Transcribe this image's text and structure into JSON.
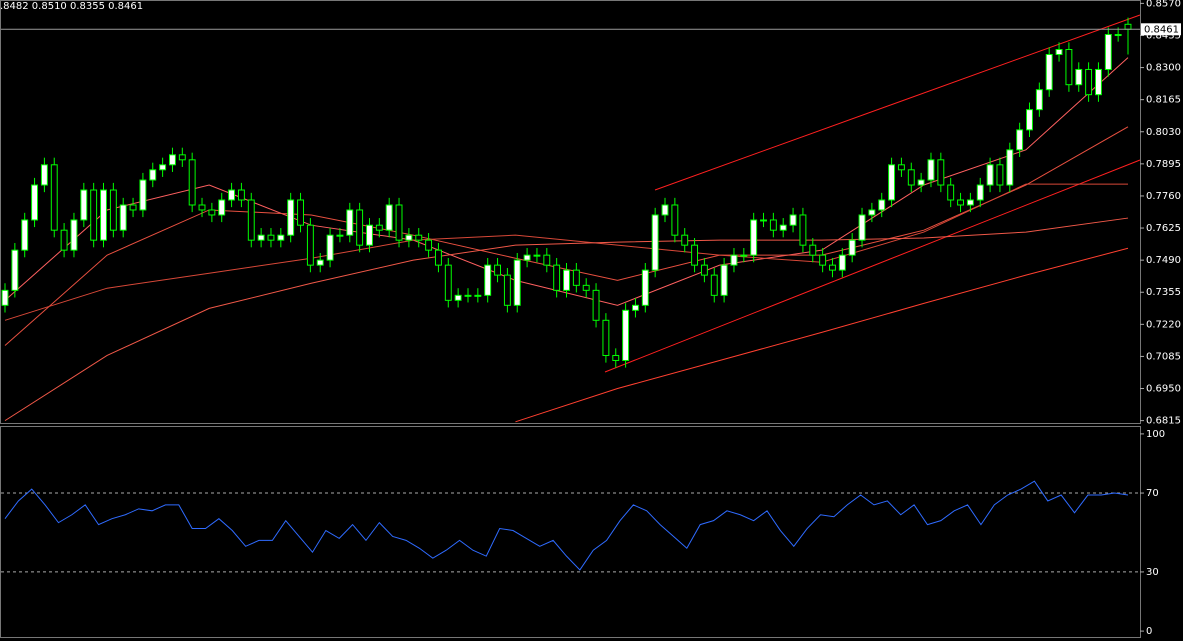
{
  "chart_data": [
    {
      "type": "candlestick",
      "header": ".8482 0.8510 0.8355 0.8461",
      "up_color": "#ffffff",
      "down_color": "#000000",
      "line_color": "#00ff00",
      "open": [
        0.73,
        0.7363,
        0.7532,
        0.7659,
        0.7806,
        0.7891,
        0.7616,
        0.7532,
        0.7659,
        0.7785,
        0.7574,
        0.7785,
        0.7616,
        0.7722,
        0.7701,
        0.7827,
        0.787,
        0.7891,
        0.7933,
        0.7912,
        0.7722,
        0.7701,
        0.768,
        0.7743,
        0.7785,
        0.7743,
        0.7574,
        0.7595,
        0.7574,
        0.7595,
        0.7743,
        0.7637,
        0.7469,
        0.749,
        0.7595,
        0.7595,
        0.7701,
        0.7553,
        0.7637,
        0.7616,
        0.7722,
        0.7574,
        0.7595,
        0.7574,
        0.7532,
        0.7469,
        0.7321,
        0.7342,
        0.7342,
        0.7342,
        0.7469,
        0.7427,
        0.73,
        0.749,
        0.7511,
        0.7511,
        0.7469,
        0.7363,
        0.7448,
        0.7384,
        0.7363,
        0.7237,
        0.7089,
        0.7068,
        0.7279,
        0.73,
        0.7448,
        0.768,
        0.7722,
        0.7595,
        0.7553,
        0.7469,
        0.7427,
        0.7342,
        0.7469,
        0.7511,
        0.7511,
        0.7659,
        0.7659,
        0.7616,
        0.7637,
        0.768,
        0.7553,
        0.7511,
        0.7469,
        0.7448,
        0.7511,
        0.7574,
        0.768,
        0.7701,
        0.7743,
        0.7891,
        0.787,
        0.7806,
        0.7827,
        0.7912,
        0.7806,
        0.7743,
        0.7722,
        0.7743,
        0.7806,
        0.7891,
        0.7806,
        0.7954,
        0.8038,
        0.8123,
        0.8207,
        0.8355,
        0.8376,
        0.8228,
        0.8292,
        0.8186,
        0.8292,
        0.8439,
        0.8482
      ],
      "high": [
        0.7393,
        0.7562,
        0.7689,
        0.7836,
        0.7921,
        0.7921,
        0.7646,
        0.7689,
        0.7815,
        0.7815,
        0.7815,
        0.7815,
        0.7752,
        0.7752,
        0.7857,
        0.79,
        0.7921,
        0.7963,
        0.7963,
        0.7942,
        0.7752,
        0.7731,
        0.7773,
        0.7815,
        0.7815,
        0.7773,
        0.7625,
        0.7625,
        0.7625,
        0.7773,
        0.7773,
        0.7667,
        0.752,
        0.7625,
        0.7625,
        0.7731,
        0.7731,
        0.7667,
        0.7667,
        0.7752,
        0.7752,
        0.7625,
        0.7625,
        0.7604,
        0.7562,
        0.7499,
        0.7372,
        0.7372,
        0.7372,
        0.7499,
        0.7499,
        0.7457,
        0.752,
        0.7541,
        0.7541,
        0.7541,
        0.7499,
        0.7478,
        0.7478,
        0.7414,
        0.7393,
        0.7267,
        0.7119,
        0.7309,
        0.733,
        0.7478,
        0.771,
        0.7752,
        0.7752,
        0.7625,
        0.7583,
        0.7499,
        0.7457,
        0.7499,
        0.7541,
        0.7541,
        0.7689,
        0.7689,
        0.7689,
        0.7667,
        0.771,
        0.771,
        0.7583,
        0.7541,
        0.7499,
        0.7541,
        0.7604,
        0.771,
        0.7731,
        0.7773,
        0.7921,
        0.7921,
        0.79,
        0.7857,
        0.7942,
        0.7942,
        0.7836,
        0.7773,
        0.7773,
        0.7836,
        0.7921,
        0.7921,
        0.7984,
        0.8068,
        0.8153,
        0.8237,
        0.8385,
        0.8406,
        0.8406,
        0.8322,
        0.8322,
        0.8322,
        0.8469,
        0.8469,
        0.851
      ],
      "low": [
        0.727,
        0.7333,
        0.7502,
        0.7629,
        0.7776,
        0.7586,
        0.7502,
        0.7502,
        0.7629,
        0.7544,
        0.7544,
        0.7586,
        0.7586,
        0.7671,
        0.7671,
        0.7797,
        0.784,
        0.7861,
        0.7882,
        0.7692,
        0.7671,
        0.765,
        0.765,
        0.7713,
        0.7713,
        0.7544,
        0.7544,
        0.7544,
        0.7544,
        0.7565,
        0.7607,
        0.7439,
        0.7439,
        0.746,
        0.7565,
        0.7565,
        0.7523,
        0.7523,
        0.7586,
        0.7586,
        0.7544,
        0.7544,
        0.7544,
        0.7502,
        0.7439,
        0.7291,
        0.7291,
        0.7312,
        0.7312,
        0.7312,
        0.7397,
        0.727,
        0.727,
        0.746,
        0.7481,
        0.7439,
        0.7333,
        0.7333,
        0.7354,
        0.7333,
        0.7207,
        0.7059,
        0.7038,
        0.7038,
        0.7249,
        0.727,
        0.7418,
        0.765,
        0.7565,
        0.7523,
        0.7439,
        0.7397,
        0.7312,
        0.7312,
        0.7439,
        0.7481,
        0.7481,
        0.7629,
        0.7586,
        0.7586,
        0.7607,
        0.7523,
        0.7481,
        0.7439,
        0.7418,
        0.7418,
        0.7481,
        0.7544,
        0.765,
        0.7671,
        0.7713,
        0.784,
        0.7776,
        0.7776,
        0.7797,
        0.7776,
        0.7713,
        0.7692,
        0.7692,
        0.7713,
        0.7776,
        0.7776,
        0.7776,
        0.7924,
        0.8008,
        0.8093,
        0.8177,
        0.8325,
        0.8198,
        0.8198,
        0.8156,
        0.8156,
        0.8262,
        0.8409,
        0.8355
      ],
      "close": [
        0.7363,
        0.7532,
        0.7659,
        0.7806,
        0.7891,
        0.7616,
        0.7532,
        0.7659,
        0.7785,
        0.7574,
        0.7785,
        0.7616,
        0.7722,
        0.7701,
        0.7827,
        0.787,
        0.7891,
        0.7933,
        0.7912,
        0.7722,
        0.7701,
        0.768,
        0.7743,
        0.7785,
        0.7743,
        0.7574,
        0.7595,
        0.7574,
        0.7595,
        0.7743,
        0.7637,
        0.7469,
        0.749,
        0.7595,
        0.7595,
        0.7701,
        0.7553,
        0.7637,
        0.7616,
        0.7722,
        0.7574,
        0.7595,
        0.7574,
        0.7532,
        0.7469,
        0.7321,
        0.7342,
        0.7342,
        0.7342,
        0.7469,
        0.7427,
        0.73,
        0.749,
        0.7511,
        0.7511,
        0.7469,
        0.7363,
        0.7448,
        0.7384,
        0.7363,
        0.7237,
        0.7089,
        0.7068,
        0.7279,
        0.73,
        0.7448,
        0.768,
        0.7722,
        0.7595,
        0.7553,
        0.7469,
        0.7427,
        0.7342,
        0.7469,
        0.7511,
        0.7511,
        0.7659,
        0.7659,
        0.7616,
        0.7637,
        0.768,
        0.7553,
        0.7511,
        0.7469,
        0.7448,
        0.7511,
        0.7574,
        0.768,
        0.7701,
        0.7743,
        0.7891,
        0.787,
        0.7806,
        0.7827,
        0.7912,
        0.7806,
        0.7743,
        0.7722,
        0.7743,
        0.7806,
        0.7891,
        0.7806,
        0.7954,
        0.8038,
        0.8123,
        0.8207,
        0.8355,
        0.8376,
        0.8228,
        0.8292,
        0.8186,
        0.8292,
        0.8439,
        0.8439,
        0.8461
      ],
      "overlays": [
        {
          "color": "#ff6060",
          "values": [
            0.7321,
            0.7701,
            0.7806,
            0.7637,
            0.7574,
            0.7405,
            0.73,
            0.7469,
            0.7532,
            0.7806,
            0.7954,
            0.8342
          ]
        },
        {
          "color": "#e85040",
          "values": [
            0.7131,
            0.7511,
            0.7701,
            0.768,
            0.7595,
            0.7498,
            0.7405,
            0.7511,
            0.7511,
            0.7616,
            0.7806,
            0.8051
          ]
        },
        {
          "color": "#d84838",
          "values": [
            0.7237,
            0.7372,
            0.7435,
            0.7498,
            0.7574,
            0.7595,
            0.7553,
            0.7511,
            0.7481,
            0.7608,
            0.781,
            0.781
          ]
        },
        {
          "color": "#f05848",
          "values": [
            0.6815,
            0.7089,
            0.7287,
            0.7393,
            0.749,
            0.7553,
            0.7566,
            0.7574,
            0.7574,
            0.7583,
            0.7608,
            0.7667
          ]
        },
        {
          "color": "#ff4030",
          "values": [
            null,
            null,
            null,
            null,
            null,
            0.681,
            0.695,
            0.7068,
            0.7186,
            0.7308,
            0.7427,
            0.754
          ]
        }
      ],
      "last_price": 0.8461,
      "ylim": [
        0.6805,
        0.858
      ],
      "yticks": [
        {
          "value": 0.857,
          "label": "0.8570"
        },
        {
          "value": 0.8435,
          "label": "0.8435"
        },
        {
          "value": 0.83,
          "label": "0.8300"
        },
        {
          "value": 0.8165,
          "label": "0.8165"
        },
        {
          "value": 0.803,
          "label": "0.8030"
        },
        {
          "value": 0.7895,
          "label": "0.7895"
        },
        {
          "value": 0.776,
          "label": "0.7760"
        },
        {
          "value": 0.7625,
          "label": "0.7625"
        },
        {
          "value": 0.749,
          "label": "0.7490"
        },
        {
          "value": 0.7355,
          "label": "0.7355"
        },
        {
          "value": 0.722,
          "label": "0.7220"
        },
        {
          "value": 0.7085,
          "label": "0.7085"
        },
        {
          "value": 0.695,
          "label": "0.6950"
        },
        {
          "value": 0.6815,
          "label": "0.6815"
        }
      ]
    },
    {
      "type": "line",
      "color": "#2f6bff",
      "values": [
        57,
        66,
        72,
        64,
        55,
        59,
        64,
        54,
        57,
        59,
        62,
        61,
        64,
        64,
        52,
        52,
        57,
        51,
        43,
        46,
        46,
        56,
        48,
        40,
        51,
        47,
        54,
        46,
        55,
        48,
        46,
        42,
        37,
        41,
        46,
        41,
        38,
        52,
        51,
        47,
        43,
        46,
        38,
        31,
        41,
        46,
        56,
        64,
        61,
        54,
        48,
        42,
        54,
        56,
        61,
        59,
        56,
        61,
        51,
        43,
        52,
        59,
        58,
        64,
        69,
        64,
        66,
        59,
        64,
        54,
        56,
        61,
        64,
        54,
        64,
        69,
        72,
        76,
        66,
        69,
        60,
        69,
        69,
        70,
        69
      ],
      "ylim": [
        -3,
        103.5
      ],
      "yticks": [
        100,
        70,
        30,
        0
      ],
      "levels": [
        70,
        30
      ]
    }
  ]
}
